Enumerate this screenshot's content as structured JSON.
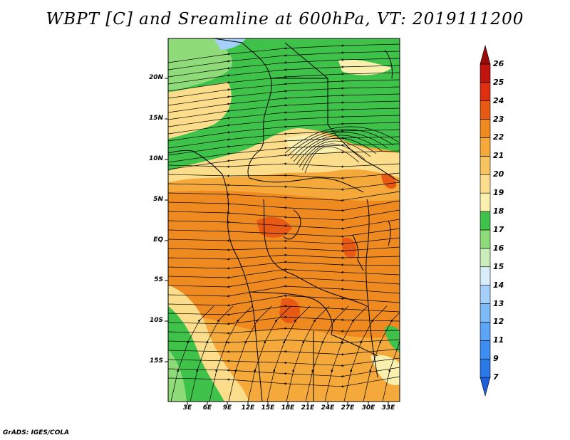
{
  "title": "WBPT [C] and Sreamline at 600hPa, VT: 2019111200",
  "credit": "GrADS: IGES/COLA",
  "latitude_labels": [
    "20N",
    "15N",
    "10N",
    "5N",
    "EQ",
    "5S",
    "10S",
    "15S"
  ],
  "longitude_labels": [
    "3E",
    "6E",
    "9E",
    "12E",
    "15E",
    "18E",
    "21E",
    "24E",
    "27E",
    "30E",
    "33E"
  ],
  "colorbar": {
    "labels": [
      "7",
      "9",
      "11",
      "12",
      "13",
      "14",
      "15",
      "16",
      "17",
      "18",
      "19",
      "20",
      "21",
      "22",
      "23",
      "24",
      "25",
      "26"
    ],
    "colors": [
      "#1f5fd9",
      "#2b78e8",
      "#3d8ef0",
      "#5aa5f5",
      "#7dbbf7",
      "#a4d0fa",
      "#d9eefb",
      "#c9eebb",
      "#8fdb7a",
      "#3fc24a",
      "#f9f0b0",
      "#fbdd8c",
      "#f7c462",
      "#f5a93a",
      "#ee8a20",
      "#e85a14",
      "#de3011",
      "#c2140c",
      "#9c0a08"
    ]
  },
  "map": {
    "variable": "WBPT [C]",
    "level": "600hPa",
    "valid_time": "2019111200"
  }
}
